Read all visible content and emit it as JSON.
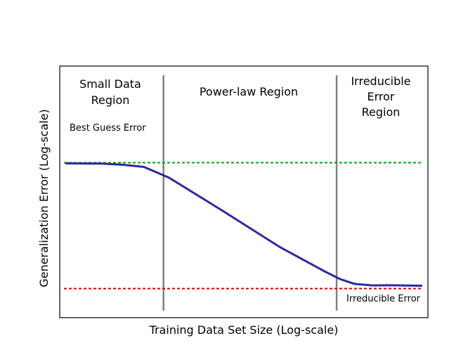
{
  "chart_data": {
    "type": "line",
    "title": "",
    "xlabel": "Training Data Set Size (Log-scale)",
    "ylabel": "Generalization Error (Log-scale)",
    "x_ticks_shown": false,
    "y_ticks_shown": false,
    "grid": false,
    "xlim": [
      0,
      100
    ],
    "ylim": [
      0,
      100
    ],
    "series": [
      {
        "name": "",
        "color": "#2b2b9b",
        "x": [
          0,
          10,
          16,
          22,
          29,
          44,
          60,
          73,
          77,
          81,
          86,
          91,
          100
        ],
        "y": [
          81,
          80.9,
          80.2,
          78.8,
          72,
          51,
          28,
          12,
          7.5,
          4.5,
          3.5,
          3.6,
          3.3
        ]
      }
    ],
    "reference_lines": [
      {
        "label": "Best Guess Error",
        "y": 81.5,
        "color": "#00a000",
        "style": "dashed"
      },
      {
        "label": "Irreducible Error",
        "y": 1.5,
        "color": "#d00000",
        "style": "dashed"
      }
    ],
    "region_boundaries": [
      {
        "x": 27.5,
        "color": "#808080"
      },
      {
        "x": 76,
        "color": "#808080"
      }
    ],
    "regions": [
      {
        "lines": [
          "Small Data",
          "Region"
        ]
      },
      {
        "lines": [
          "Power-law Region"
        ]
      },
      {
        "lines": [
          "Irreducible",
          "Error",
          "Region"
        ]
      }
    ]
  }
}
